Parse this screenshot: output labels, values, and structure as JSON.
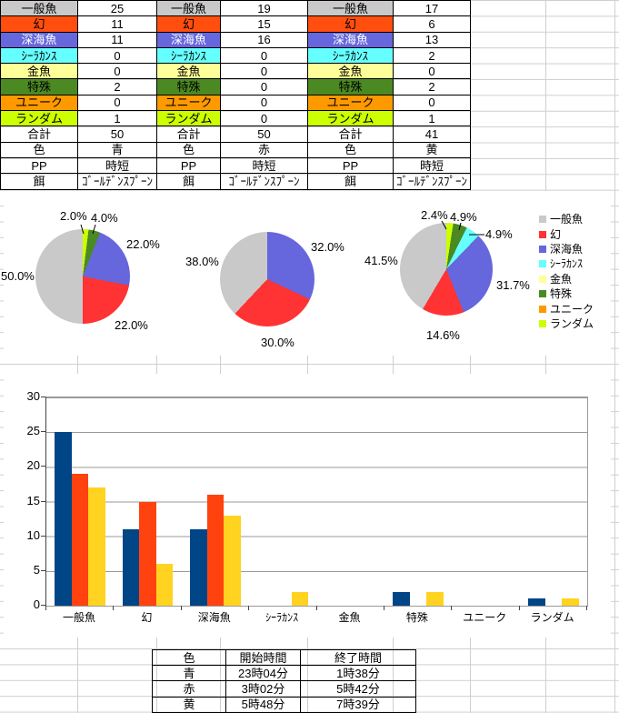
{
  "sheet": {
    "categories": [
      {
        "name": "一般魚",
        "table_bg": "#C9C9C9",
        "table_text": "#000000",
        "chart_color": "#C9C9C9"
      },
      {
        "name": "幻",
        "table_bg": "#FF4E0D",
        "table_text": "#000000",
        "chart_color": "#FF3333"
      },
      {
        "name": "深海魚",
        "table_bg": "#6666DD",
        "table_text": "#FFFFFF",
        "chart_color": "#6666DD"
      },
      {
        "name": "ｼｰﾗｶﾝｽ",
        "table_bg": "#66FFFF",
        "table_text": "#000000",
        "chart_color": "#66FFFF"
      },
      {
        "name": "金魚",
        "table_bg": "#FFFF99",
        "table_text": "#000000",
        "chart_color": "#FFFF99"
      },
      {
        "name": "特殊",
        "table_bg": "#4B8A22",
        "table_text": "#000000",
        "chart_color": "#4B8A22"
      },
      {
        "name": "ユニーク",
        "table_bg": "#FF9900",
        "table_text": "#000000",
        "chart_color": "#FF9900"
      },
      {
        "name": "ランダム",
        "table_bg": "#CCFF00",
        "table_text": "#000000",
        "chart_color": "#CCFF00"
      }
    ],
    "row_labels": {
      "total": "合計",
      "color": "色",
      "pp": "PP",
      "bait": "餌"
    },
    "summary_tables": [
      {
        "counts": [
          25,
          11,
          11,
          0,
          0,
          2,
          0,
          1
        ],
        "total": 50,
        "color": "青",
        "pp": "時短",
        "bait": "ｺﾞｰﾙﾃﾞﾝｽﾌﾟｰﾝ"
      },
      {
        "counts": [
          19,
          15,
          16,
          0,
          0,
          0,
          0,
          0
        ],
        "total": 50,
        "color": "赤",
        "pp": "時短",
        "bait": "ｺﾞｰﾙﾃﾞﾝｽﾌﾟｰﾝ"
      },
      {
        "counts": [
          17,
          6,
          13,
          2,
          0,
          2,
          0,
          1
        ],
        "total": 41,
        "color": "黄",
        "pp": "時短",
        "bait": "ｺﾞｰﾙﾃﾞﾝｽﾌﾟｰﾝ"
      }
    ]
  },
  "chart_data": [
    {
      "type": "pie",
      "direction": "counterclockwise",
      "start_angle": "top",
      "center": {
        "x": 91,
        "y": 304
      },
      "radius": 52,
      "slices": [
        {
          "label": "一般魚",
          "pct": 50.0,
          "color": "#C9C9C9"
        },
        {
          "label": "幻",
          "pct": 22.0,
          "color": "#FF3333"
        },
        {
          "label": "深海魚",
          "pct": 22.0,
          "color": "#6666DD"
        },
        {
          "label": "特殊",
          "pct": 4.0,
          "color": "#4B8A22"
        },
        {
          "label": "ランダム",
          "pct": 2.0,
          "color": "#CCFF00"
        }
      ],
      "labels": [
        {
          "text": "50.0%",
          "x": 1,
          "y": 297
        },
        {
          "text": "22.0%",
          "x": 139,
          "y": 262
        },
        {
          "text": "22.0%",
          "x": 126,
          "y": 351
        },
        {
          "text": "4.0%",
          "x": 100,
          "y": 233
        },
        {
          "text": "2.0%",
          "x": 66,
          "y": 231
        }
      ],
      "leader_lines": [
        [
          89,
          247,
          92,
          257
        ],
        [
          105,
          247,
          102,
          257
        ]
      ]
    },
    {
      "type": "pie",
      "direction": "counterclockwise",
      "start_angle": "top",
      "center": {
        "x": 294,
        "y": 307
      },
      "radius": 52,
      "slices": [
        {
          "label": "一般魚",
          "pct": 38.0,
          "color": "#C9C9C9"
        },
        {
          "label": "幻",
          "pct": 30.0,
          "color": "#FF3333"
        },
        {
          "label": "深海魚",
          "pct": 32.0,
          "color": "#6666DD"
        }
      ],
      "labels": [
        {
          "text": "38.0%",
          "x": 204,
          "y": 281
        },
        {
          "text": "32.0%",
          "x": 342,
          "y": 265
        },
        {
          "text": "30.0%",
          "x": 287,
          "y": 370
        }
      ],
      "leader_lines": []
    },
    {
      "type": "pie",
      "direction": "counterclockwise",
      "start_angle": "top",
      "center": {
        "x": 491,
        "y": 296
      },
      "radius": 51,
      "slices": [
        {
          "label": "一般魚",
          "pct": 41.5,
          "color": "#C9C9C9"
        },
        {
          "label": "幻",
          "pct": 14.6,
          "color": "#FF3333"
        },
        {
          "label": "深海魚",
          "pct": 31.7,
          "color": "#6666DD"
        },
        {
          "label": "ｼｰﾗｶﾝｽ",
          "pct": 4.9,
          "color": "#66FFFF"
        },
        {
          "label": "特殊",
          "pct": 4.9,
          "color": "#4B8A22"
        },
        {
          "label": "ランダム",
          "pct": 2.4,
          "color": "#CCFF00"
        }
      ],
      "labels": [
        {
          "text": "41.5%",
          "x": 401,
          "y": 280
        },
        {
          "text": "2.4%",
          "x": 463,
          "y": 230
        },
        {
          "text": "4.9%",
          "x": 495,
          "y": 232
        },
        {
          "text": "4.9%",
          "x": 534,
          "y": 251
        },
        {
          "text": "31.7%",
          "x": 546,
          "y": 307
        },
        {
          "text": "14.6%",
          "x": 469,
          "y": 362
        }
      ],
      "leader_lines": [
        [
          486,
          243,
          491,
          252
        ],
        [
          507,
          245,
          505,
          253
        ],
        [
          516,
          258,
          533,
          258
        ]
      ],
      "legend_position": "right"
    },
    {
      "type": "bar",
      "categories": [
        "一般魚",
        "幻",
        "深海魚",
        "ｼｰﾗｶﾝｽ",
        "金魚",
        "特殊",
        "ユニーク",
        "ランダム"
      ],
      "series": [
        {
          "name": "青",
          "color": "#004586",
          "values": [
            25,
            11,
            11,
            0,
            0,
            2,
            0,
            1
          ]
        },
        {
          "name": "赤",
          "color": "#FF420E",
          "values": [
            19,
            15,
            16,
            0,
            0,
            0,
            0,
            0
          ]
        },
        {
          "name": "黄",
          "color": "#FFD320",
          "values": [
            17,
            6,
            13,
            2,
            0,
            2,
            0,
            1
          ]
        }
      ],
      "ylim": [
        0,
        30
      ],
      "ytick_step": 5,
      "yticks": [
        0,
        5,
        10,
        15,
        20,
        25,
        30
      ],
      "grid": true,
      "legend": "none"
    }
  ],
  "legend_entries": [
    "一般魚",
    "幻",
    "深海魚",
    "ｼｰﾗｶﾝｽ",
    "金魚",
    "特殊",
    "ユニーク",
    "ランダム"
  ],
  "bottom_table": {
    "headers": [
      "色",
      "開始時間",
      "終了時間"
    ],
    "rows": [
      [
        "青",
        "23時04分",
        "1時38分"
      ],
      [
        "赤",
        "3時02分",
        "5時42分"
      ],
      [
        "黄",
        "5時48分",
        "7時39分"
      ]
    ]
  }
}
